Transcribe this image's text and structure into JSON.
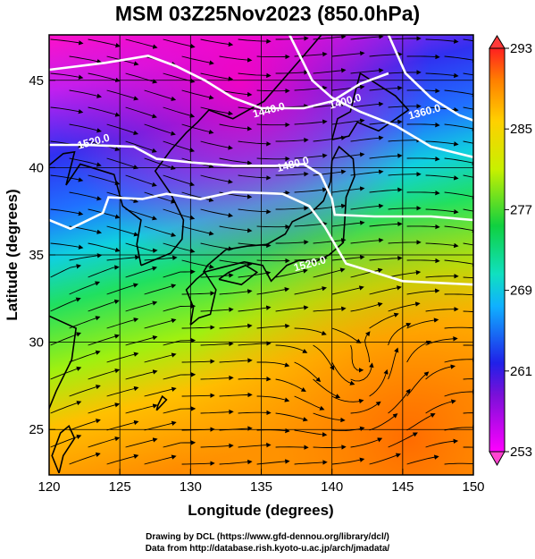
{
  "title": "MSM 03Z25Nov2023 (850.0hPa)",
  "x_axis": {
    "label": "Longitude (degrees)",
    "range": [
      120,
      150
    ],
    "ticks": [
      120,
      125,
      130,
      135,
      140,
      145,
      150
    ],
    "tick_labels": [
      "120",
      "125",
      "130",
      "135",
      "140",
      "145",
      "150"
    ]
  },
  "y_axis": {
    "label": "Latitude  (degrees)",
    "range": [
      22.4,
      47.6
    ],
    "ticks": [
      25,
      30,
      35,
      40,
      45
    ],
    "tick_labels": [
      "25",
      "30",
      "35",
      "40",
      "45"
    ]
  },
  "colorbar": {
    "min": 253,
    "max": 293,
    "tick_labels": [
      "293",
      "285",
      "277",
      "269",
      "261",
      "253"
    ],
    "tick_values": [
      293,
      285,
      277,
      269,
      261,
      253
    ]
  },
  "contours": [
    {
      "label": "1520.0",
      "label_lon": 123.2,
      "label_lat": 41.3
    },
    {
      "label": "1480.0",
      "label_lon": 137.3,
      "label_lat": 40.0
    },
    {
      "label": "1440.0",
      "label_lon": 135.6,
      "label_lat": 43.1
    },
    {
      "label": "1400.0",
      "label_lon": 141.0,
      "label_lat": 43.6
    },
    {
      "label": "1360.0",
      "label_lon": 146.6,
      "label_lat": 43.0
    },
    {
      "label": "1520.0",
      "label_lon": 138.5,
      "label_lat": 34.3
    }
  ],
  "credits": [
    "Drawing by DCL (https://www.gfd-dennou.org/library/dcl/)",
    "Data from http://database.rish.kyoto-u.ac.jp/arch/jmadata/"
  ]
}
